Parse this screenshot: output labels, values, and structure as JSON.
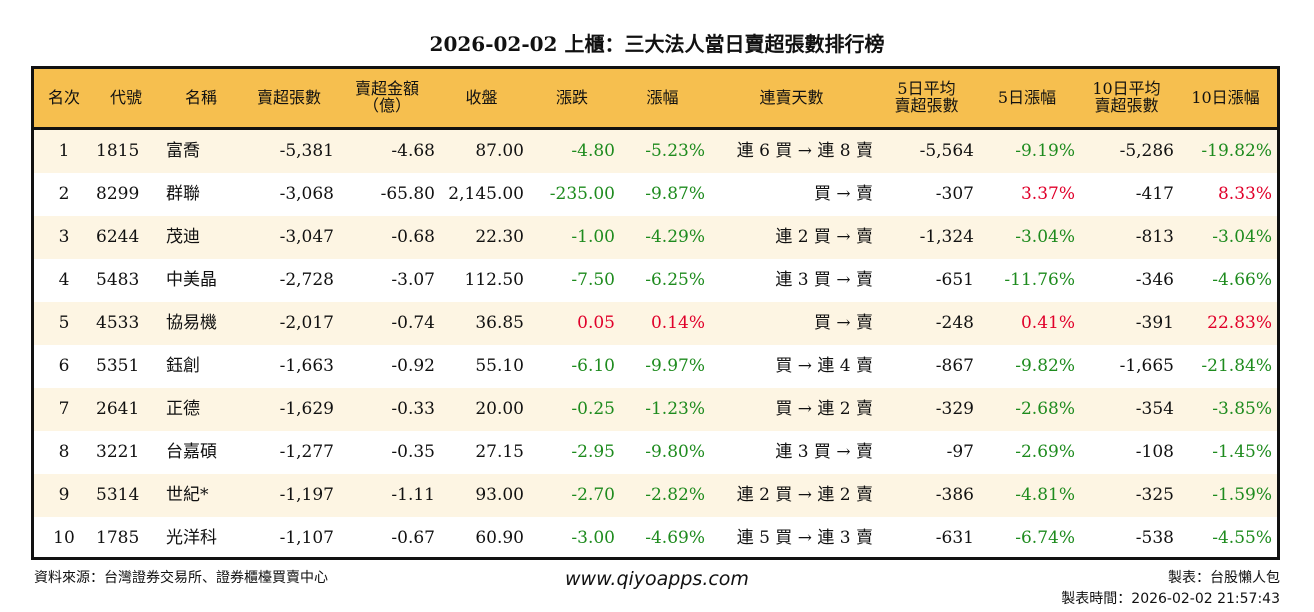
{
  "title": "2026-02-02 上櫃：三大法人當日賣超張數排行榜",
  "headers": [
    "名次",
    "代號",
    "名稱",
    "賣超張數",
    "賣超金額\n（億）",
    "收盤",
    "漲跌",
    "漲幅",
    "連賣天數",
    "5日平均\n賣超張數",
    "5日漲幅",
    "10日平均\n賣超張數",
    "10日漲幅"
  ],
  "rows": [
    [
      "1",
      "1815",
      "富喬",
      "-5,381",
      "-4.68",
      "87.00",
      "-4.80",
      "-5.23%",
      "連 6 買 → 連 8 賣",
      "-5,564",
      "-9.19%",
      "-5,286",
      "-19.82%"
    ],
    [
      "2",
      "8299",
      "群聯",
      "-3,068",
      "-65.80",
      "2,145.00",
      "-235.00",
      "-9.87%",
      "買 → 賣",
      "-307",
      "3.37%",
      "-417",
      "8.33%"
    ],
    [
      "3",
      "6244",
      "茂迪",
      "-3,047",
      "-0.68",
      "22.30",
      "-1.00",
      "-4.29%",
      "連 2 買 → 賣",
      "-1,324",
      "-3.04%",
      "-813",
      "-3.04%"
    ],
    [
      "4",
      "5483",
      "中美晶",
      "-2,728",
      "-3.07",
      "112.50",
      "-7.50",
      "-6.25%",
      "連 3 買 → 賣",
      "-651",
      "-11.76%",
      "-346",
      "-4.66%"
    ],
    [
      "5",
      "4533",
      "協易機",
      "-2,017",
      "-0.74",
      "36.85",
      "0.05",
      "0.14%",
      "買 → 賣",
      "-248",
      "0.41%",
      "-391",
      "22.83%"
    ],
    [
      "6",
      "5351",
      "鈺創",
      "-1,663",
      "-0.92",
      "55.10",
      "-6.10",
      "-9.97%",
      "買 → 連 4 賣",
      "-867",
      "-9.82%",
      "-1,665",
      "-21.84%"
    ],
    [
      "7",
      "2641",
      "正德",
      "-1,629",
      "-0.33",
      "20.00",
      "-0.25",
      "-1.23%",
      "買 → 連 2 賣",
      "-329",
      "-2.68%",
      "-354",
      "-3.85%"
    ],
    [
      "8",
      "3221",
      "台嘉碩",
      "-1,277",
      "-0.35",
      "27.15",
      "-2.95",
      "-9.80%",
      "連 3 買 → 賣",
      "-97",
      "-2.69%",
      "-108",
      "-1.45%"
    ],
    [
      "9",
      "5314",
      "世紀*",
      "-1,197",
      "-1.11",
      "93.00",
      "-2.70",
      "-2.82%",
      "連 2 買 → 連 2 賣",
      "-386",
      "-4.81%",
      "-325",
      "-1.59%"
    ],
    [
      "10",
      "1785",
      "光洋科",
      "-1,107",
      "-0.67",
      "60.90",
      "-3.00",
      "-4.69%",
      "連 5 買 → 連 3 賣",
      "-631",
      "-6.74%",
      "-538",
      "-4.55%"
    ]
  ],
  "footer": {
    "source": "資料來源：台灣證券交易所、證券櫃檯買賣中心",
    "url": "www.qiyoapps.com",
    "maker": "製表：台股懶人包",
    "time": "製表時間：2026-02-02 21:57:43"
  },
  "colors": {
    "header": "#F6BF4F",
    "odd_row": "#FDF5E3",
    "up": "#E0002A",
    "down": "#1E8B1E"
  }
}
